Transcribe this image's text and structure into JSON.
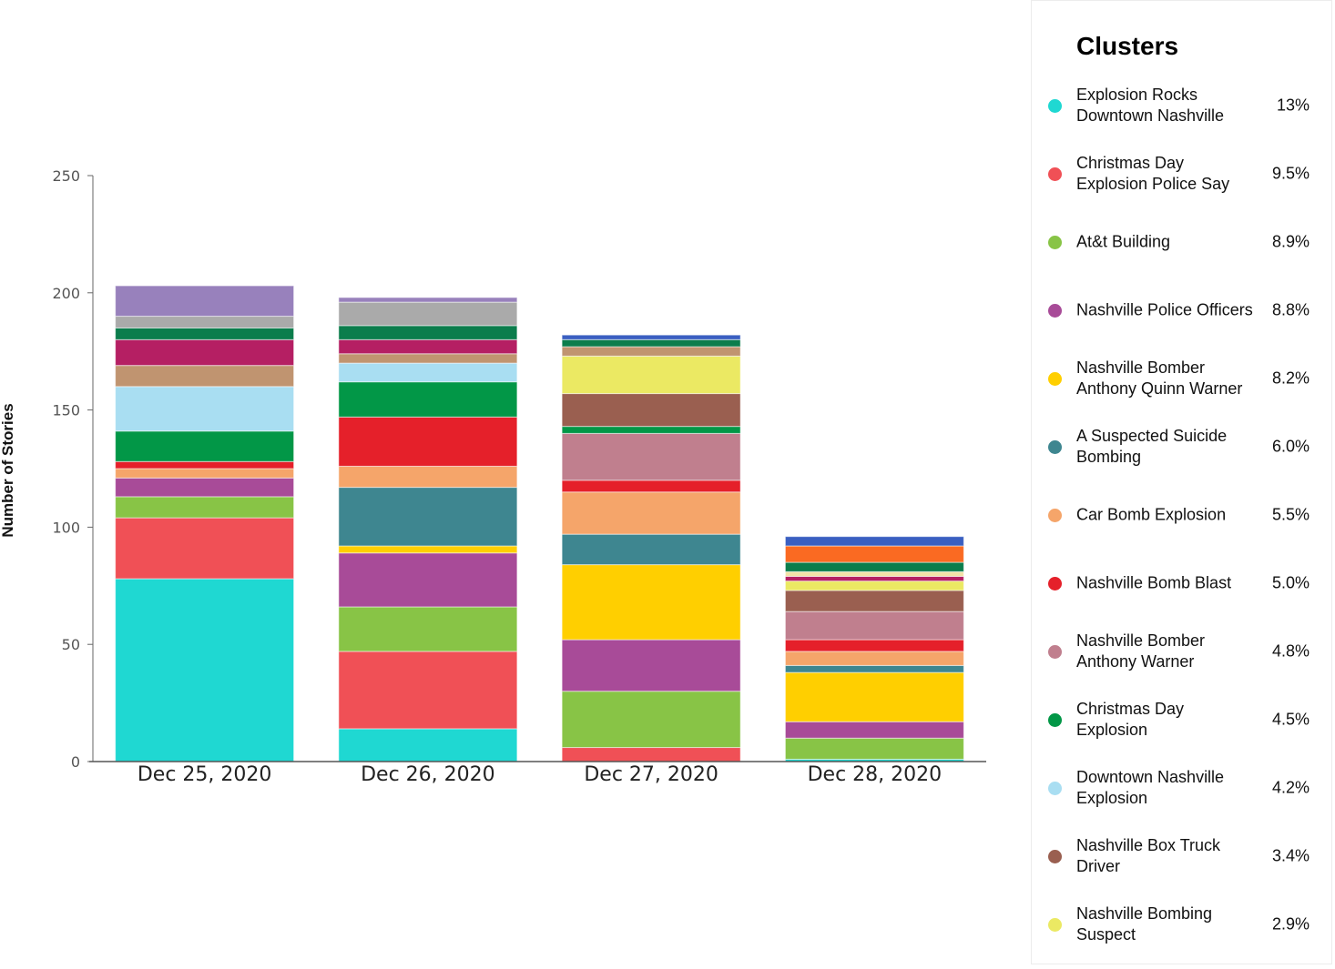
{
  "chart_data": {
    "type": "bar",
    "stacked": true,
    "ylabel": "Number of Stories",
    "xlabel": "",
    "ylim": [
      0,
      250
    ],
    "yticks": [
      0,
      50,
      100,
      150,
      200,
      250
    ],
    "categories": [
      "Dec 25, 2020",
      "Dec 26, 2020",
      "Dec 27, 2020",
      "Dec 28, 2020"
    ],
    "series": [
      {
        "name": "Explosion Rocks Downtown Nashville",
        "color": "#1fd8d2",
        "values": [
          78,
          14,
          0,
          1
        ]
      },
      {
        "name": "Christmas Day Explosion Police Say",
        "color": "#f05056",
        "values": [
          26,
          33,
          6,
          0
        ]
      },
      {
        "name": "At&t Building",
        "color": "#88c446",
        "values": [
          9,
          19,
          24,
          9
        ]
      },
      {
        "name": "Nashville Police Officers",
        "color": "#a84b98",
        "values": [
          8,
          23,
          22,
          7
        ]
      },
      {
        "name": "Nashville Bomber Anthony Quinn Warner",
        "color": "#ffcf00",
        "values": [
          0,
          3,
          32,
          21
        ]
      },
      {
        "name": "A Suspected Suicide Bombing",
        "color": "#3e8690",
        "values": [
          0,
          25,
          13,
          3
        ]
      },
      {
        "name": "Car Bomb Explosion",
        "color": "#f5a56a",
        "values": [
          4,
          9,
          18,
          6
        ]
      },
      {
        "name": "Nashville Bomb Blast",
        "color": "#e5202a",
        "values": [
          3,
          21,
          5,
          5
        ]
      },
      {
        "name": "Nashville Bomber Anthony Warner",
        "color": "#c07f8e",
        "values": [
          0,
          0,
          20,
          12
        ]
      },
      {
        "name": "Christmas Day Explosion",
        "color": "#029747",
        "values": [
          13,
          15,
          3,
          0
        ]
      },
      {
        "name": "Downtown Nashville Explosion",
        "color": "#a9def2",
        "values": [
          19,
          8,
          0,
          0
        ]
      },
      {
        "name": "Nashville Box Truck Driver",
        "color": "#9a5f50",
        "values": [
          0,
          0,
          14,
          9
        ]
      },
      {
        "name": "Nashville Bombing Suspect",
        "color": "#ebe963",
        "values": [
          0,
          0,
          16,
          4
        ]
      },
      {
        "name": "",
        "color": "#c09470",
        "values": [
          9,
          4,
          4,
          0
        ]
      },
      {
        "name": "",
        "color": "#b51f63",
        "values": [
          11,
          6,
          0,
          2
        ]
      },
      {
        "name": "",
        "color": "#f3e1a8",
        "values": [
          0,
          0,
          0,
          2
        ]
      },
      {
        "name": "",
        "color": "#0b7d4c",
        "values": [
          5,
          6,
          3,
          4
        ]
      },
      {
        "name": "",
        "color": "#aaaaaa",
        "values": [
          5,
          10,
          0,
          0
        ]
      },
      {
        "name": "",
        "color": "#9881bc",
        "values": [
          13,
          2,
          0,
          0
        ]
      },
      {
        "name": "",
        "color": "#fa6a22",
        "values": [
          0,
          0,
          0,
          7
        ]
      },
      {
        "name": "",
        "color": "#3a5fc1",
        "values": [
          0,
          0,
          2,
          4
        ]
      }
    ]
  },
  "legend": {
    "title": "Clusters",
    "items": [
      {
        "label": "Explosion Rocks Downtown Nashville",
        "pct": "13%",
        "color": "#1fd8d2"
      },
      {
        "label": "Christmas Day Explosion Police Say",
        "pct": "9.5%",
        "color": "#f05056"
      },
      {
        "label": "At&t Building",
        "pct": "8.9%",
        "color": "#88c446"
      },
      {
        "label": "Nashville Police Officers",
        "pct": "8.8%",
        "color": "#a84b98"
      },
      {
        "label": "Nashville Bomber Anthony Quinn Warner",
        "pct": "8.2%",
        "color": "#ffcf00"
      },
      {
        "label": "A Suspected Suicide Bombing",
        "pct": "6.0%",
        "color": "#3e8690"
      },
      {
        "label": "Car Bomb Explosion",
        "pct": "5.5%",
        "color": "#f5a56a"
      },
      {
        "label": "Nashville Bomb Blast",
        "pct": "5.0%",
        "color": "#e5202a"
      },
      {
        "label": "Nashville Bomber Anthony Warner",
        "pct": "4.8%",
        "color": "#c07f8e"
      },
      {
        "label": "Christmas Day Explosion",
        "pct": "4.5%",
        "color": "#029747"
      },
      {
        "label": "Downtown Nashville Explosion",
        "pct": "4.2%",
        "color": "#a9def2"
      },
      {
        "label": "Nashville Box Truck Driver",
        "pct": "3.4%",
        "color": "#9a5f50"
      },
      {
        "label": "Nashville Bombing Suspect",
        "pct": "2.9%",
        "color": "#ebe963"
      }
    ]
  }
}
